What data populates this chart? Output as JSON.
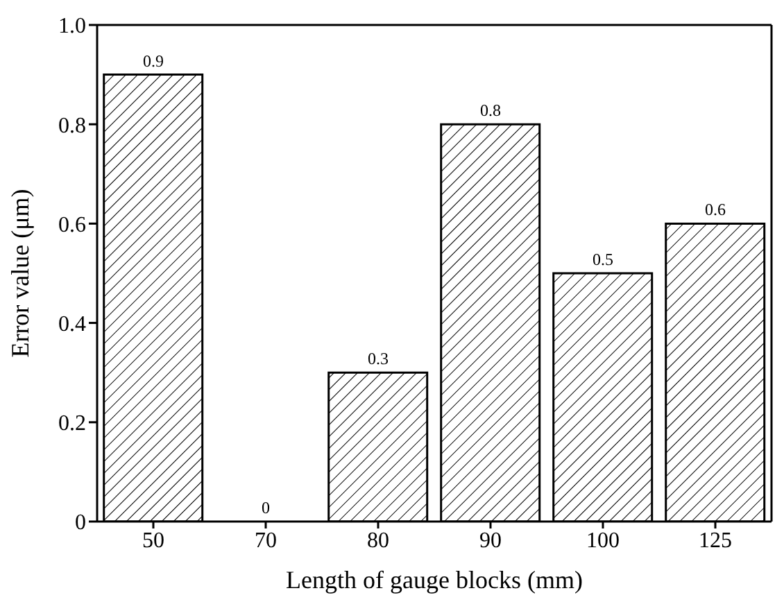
{
  "chart_data": {
    "type": "bar",
    "xlabel": "Length of gauge blocks (mm)",
    "ylabel": "Error value (μm)",
    "categories": [
      "50",
      "70",
      "80",
      "90",
      "100",
      "125"
    ],
    "values": [
      0.9,
      0,
      0.3,
      0.8,
      0.5,
      0.6
    ],
    "color": "#000000",
    "ylim": [
      0,
      1
    ],
    "yticks": [
      0,
      0.2,
      0.4,
      0.6,
      0.8,
      {
        "value": 1,
        "label": "1.0"
      }
    ],
    "data_labels": true,
    "grid": false,
    "legend": false
  }
}
